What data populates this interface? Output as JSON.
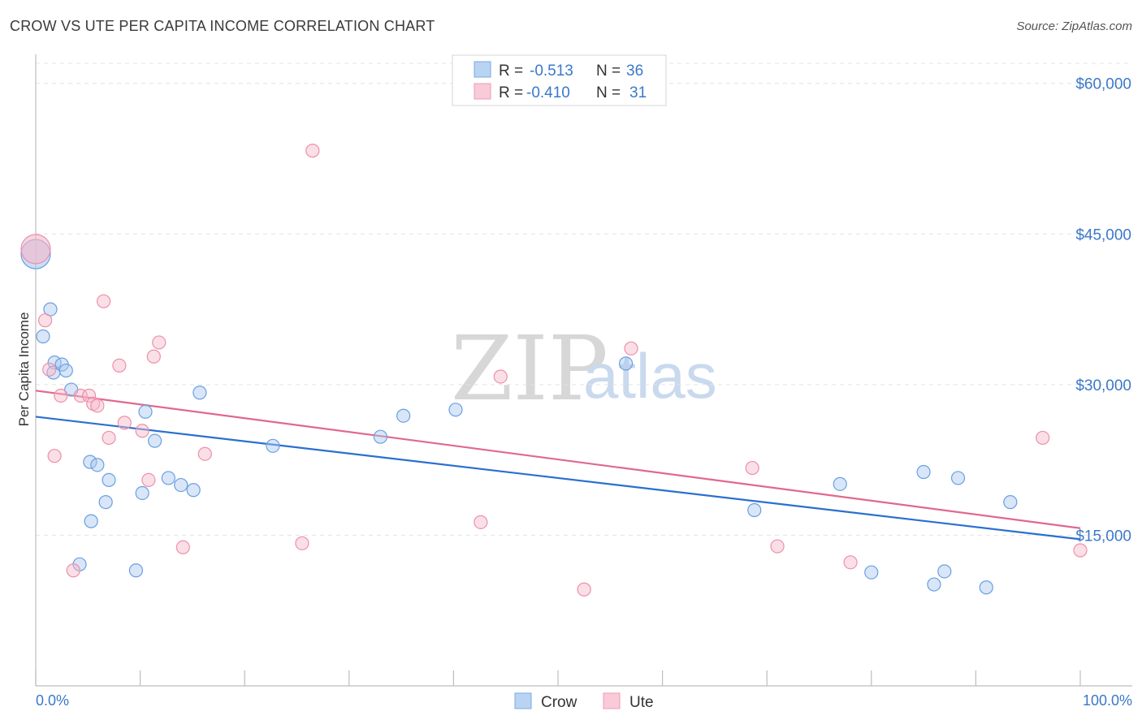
{
  "header": {
    "title": "CROW VS UTE PER CAPITA INCOME CORRELATION CHART",
    "source": "Source: ZipAtlas.com"
  },
  "legend": {
    "crow": {
      "r_label": "R = ",
      "r_value": "-0.513",
      "n_label": "N = ",
      "n_value": "36"
    },
    "ute": {
      "r_label": "R = ",
      "r_value": "-0.410",
      "n_label": "N = ",
      "n_value": "31"
    }
  },
  "bottom_legend": {
    "crow": "Crow",
    "ute": "Ute"
  },
  "watermark": {
    "zip": "ZIP",
    "atlas": "atlas"
  },
  "colors": {
    "crow_fill": "#a9c8f0",
    "crow_stroke": "#6a9fe0",
    "crow_line": "#2a6fcf",
    "ute_fill": "#f6b8ca",
    "ute_stroke": "#ec8fab",
    "ute_line": "#e0688f",
    "axis_text": "#3b78c9",
    "grid": "#e3e3e3"
  },
  "chart_data": {
    "type": "scatter",
    "title": "CROW VS UTE PER CAPITA INCOME CORRELATION CHART",
    "xlabel": "",
    "ylabel": "Per Capita Income",
    "xlim": [
      0,
      100
    ],
    "ylim": [
      0,
      62000
    ],
    "x_tick_labels": [
      "0.0%",
      "100.0%"
    ],
    "y_ticks": [
      15000,
      30000,
      45000,
      60000
    ],
    "y_tick_labels": [
      "$15,000",
      "$30,000",
      "$45,000",
      "$60,000"
    ],
    "grid": true,
    "legend_position": "top-center",
    "series": [
      {
        "name": "Crow",
        "points": [
          [
            0,
            43000,
            "big"
          ],
          [
            1.4,
            37500
          ],
          [
            0.7,
            34800
          ],
          [
            1.8,
            32200
          ],
          [
            1.7,
            31200
          ],
          [
            2.5,
            32000
          ],
          [
            2.9,
            31400
          ],
          [
            3.4,
            29500
          ],
          [
            5.2,
            22300
          ],
          [
            5.9,
            22000
          ],
          [
            7.0,
            20500
          ],
          [
            6.7,
            18300
          ],
          [
            5.3,
            16400
          ],
          [
            4.2,
            12100
          ],
          [
            9.6,
            11500
          ],
          [
            10.2,
            19200
          ],
          [
            10.5,
            27300
          ],
          [
            11.4,
            24400
          ],
          [
            12.7,
            20700
          ],
          [
            13.9,
            20000
          ],
          [
            15.1,
            19500
          ],
          [
            15.7,
            29200
          ],
          [
            22.7,
            23900
          ],
          [
            33.0,
            24800
          ],
          [
            35.2,
            26900
          ],
          [
            40.2,
            27500
          ],
          [
            56.5,
            32100
          ],
          [
            68.8,
            17500
          ],
          [
            77.0,
            20100
          ],
          [
            80.0,
            11300
          ],
          [
            85.0,
            21300
          ],
          [
            86.0,
            10100
          ],
          [
            87.0,
            11400
          ],
          [
            88.3,
            20700
          ],
          [
            91.0,
            9800
          ],
          [
            93.3,
            18300
          ]
        ]
      },
      {
        "name": "Ute",
        "points": [
          [
            0,
            43500,
            "big"
          ],
          [
            0.9,
            36400
          ],
          [
            1.3,
            31500
          ],
          [
            1.8,
            22900
          ],
          [
            2.4,
            28900
          ],
          [
            3.6,
            11500
          ],
          [
            4.3,
            28900
          ],
          [
            5.1,
            28900
          ],
          [
            5.5,
            28100
          ],
          [
            5.9,
            27900
          ],
          [
            6.5,
            38300
          ],
          [
            7.0,
            24700
          ],
          [
            8.0,
            31900
          ],
          [
            8.5,
            26200
          ],
          [
            10.2,
            25400
          ],
          [
            10.8,
            20500
          ],
          [
            11.3,
            32800
          ],
          [
            11.8,
            34200
          ],
          [
            14.1,
            13800
          ],
          [
            16.2,
            23100
          ],
          [
            25.5,
            14200
          ],
          [
            26.5,
            53300
          ],
          [
            42.6,
            16300
          ],
          [
            44.5,
            30800
          ],
          [
            52.5,
            9600
          ],
          [
            57.0,
            33600
          ],
          [
            68.6,
            21700
          ],
          [
            71.0,
            13900
          ],
          [
            78.0,
            12300
          ],
          [
            96.4,
            24700
          ],
          [
            100.0,
            13500
          ]
        ]
      }
    ],
    "trend_lines": [
      {
        "name": "Crow",
        "x": [
          0,
          100
        ],
        "y": [
          26800,
          14600
        ]
      },
      {
        "name": "Ute",
        "x": [
          0,
          100
        ],
        "y": [
          29400,
          15700
        ]
      }
    ]
  }
}
